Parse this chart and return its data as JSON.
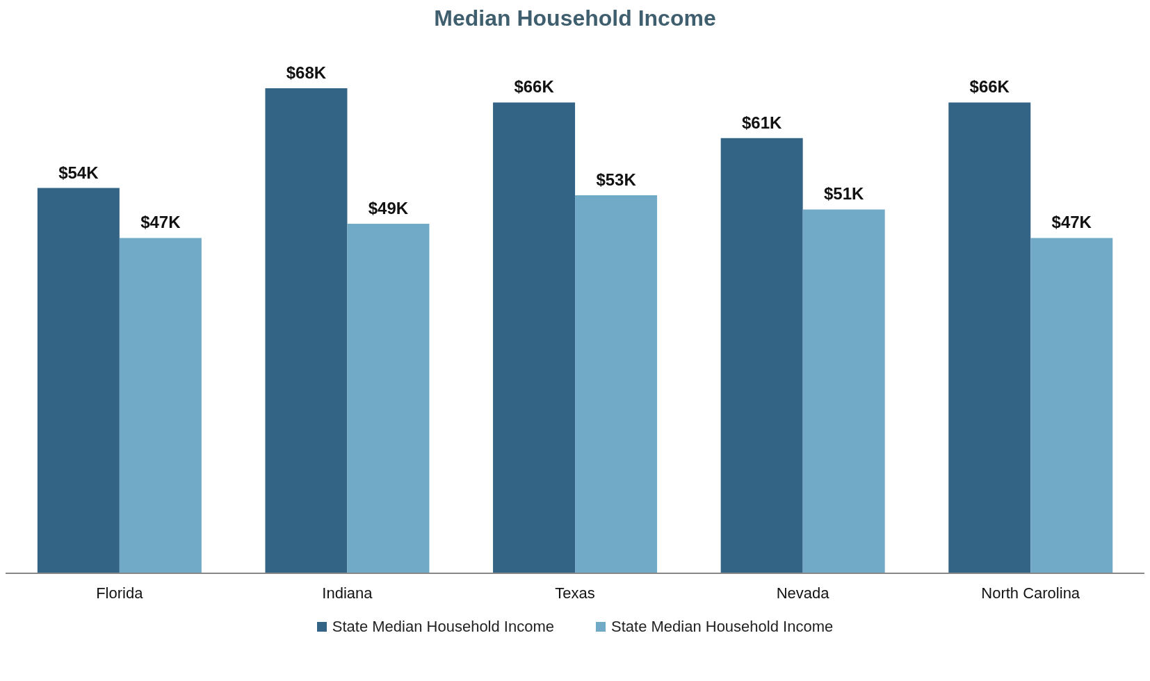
{
  "chart_data": {
    "type": "bar",
    "title": "Median Household Income",
    "categories": [
      "Florida",
      "Indiana",
      "Texas",
      "Nevada",
      "North Carolina"
    ],
    "series": [
      {
        "name": "State Median Household Income",
        "color": "#336485",
        "values": [
          54,
          68,
          66,
          61,
          66
        ],
        "value_labels": [
          "$54K",
          "$68K",
          "$66K",
          "$61K",
          "$66K"
        ]
      },
      {
        "name": "State Median Household Income",
        "color": "#71aac6",
        "values": [
          47,
          49,
          53,
          51,
          47
        ],
        "value_labels": [
          "$47K",
          "$49K",
          "$53K",
          "$51K",
          "$47K"
        ]
      }
    ],
    "legend": "bottom",
    "grid": false
  }
}
